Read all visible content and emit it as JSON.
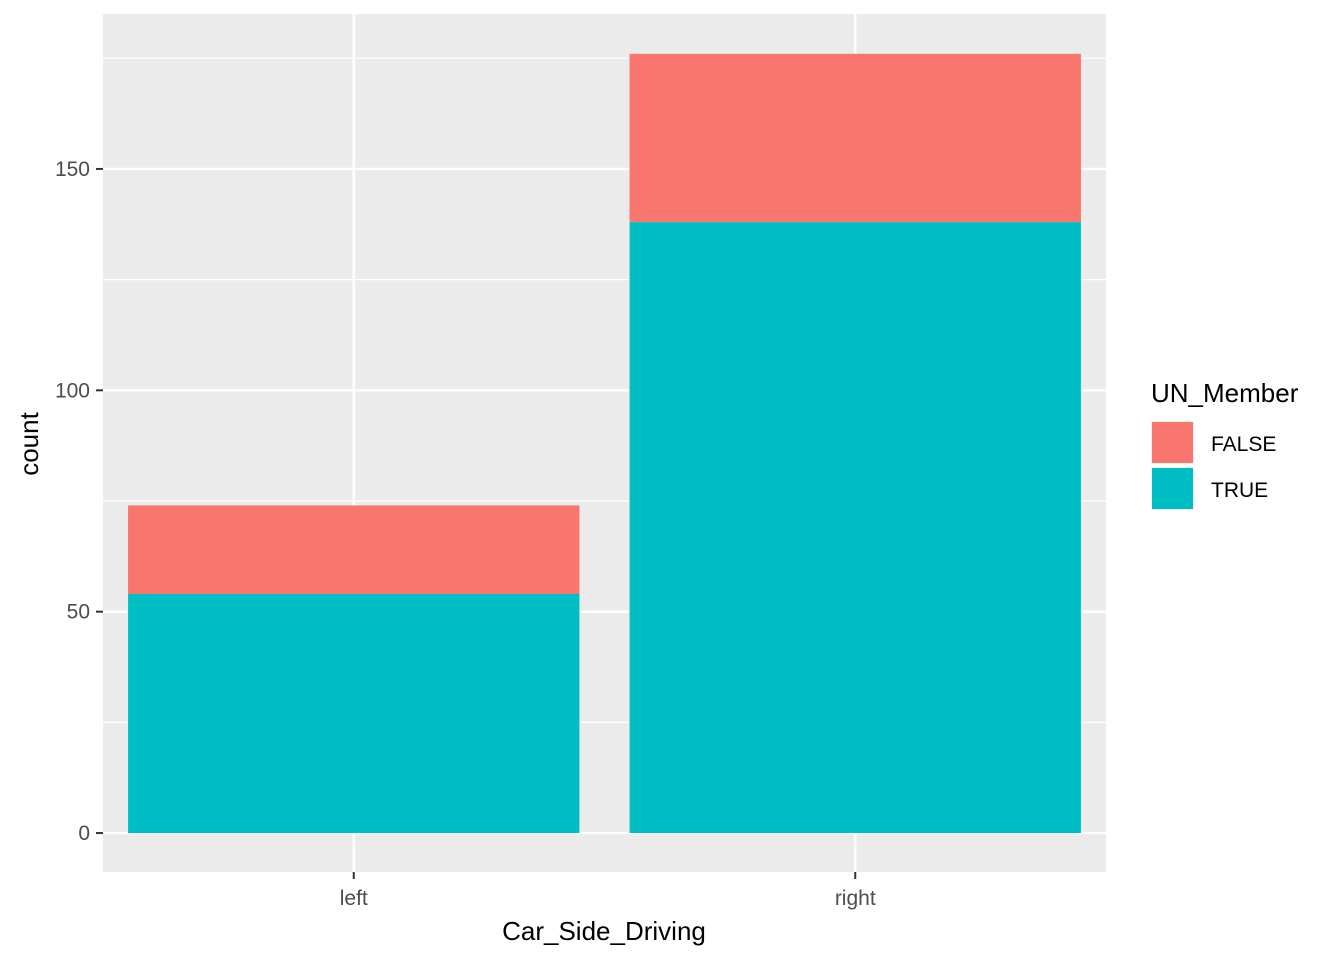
{
  "chart_data": {
    "type": "bar",
    "stacked": true,
    "categories": [
      "left",
      "right"
    ],
    "series": [
      {
        "name": "TRUE",
        "values": [
          54,
          138
        ],
        "color": "#00BFC4"
      },
      {
        "name": "FALSE",
        "values": [
          20,
          38
        ],
        "color": "#F8766D"
      }
    ],
    "xlabel": "Car_Side_Driving",
    "ylabel": "count",
    "ylim": [
      -8.8,
      185
    ],
    "y_ticks": [
      0,
      50,
      100,
      150
    ],
    "grid": true,
    "legend": {
      "title": "UN_Member",
      "placement": "right",
      "entries": [
        {
          "label": "FALSE",
          "color": "#F8766D"
        },
        {
          "label": "TRUE",
          "color": "#00BFC4"
        }
      ]
    },
    "panel_background": "#EBEBEB",
    "grid_color": "#FFFFFF"
  }
}
